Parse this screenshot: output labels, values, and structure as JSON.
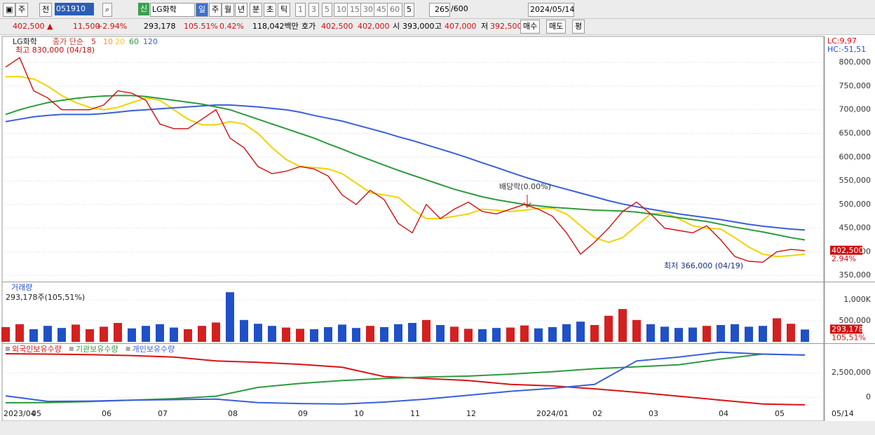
{
  "toolbar": {
    "market": "주",
    "prev": "전",
    "code": "051910",
    "badge": "신",
    "name": "LG화학",
    "periods": [
      "일",
      "주",
      "월",
      "년",
      "분",
      "초",
      "틱"
    ],
    "units": [
      "1",
      "3",
      "5",
      "10",
      "15",
      "30",
      "45",
      "60"
    ],
    "unit_select": "5",
    "count": "265",
    "count_max": "/600",
    "date": "2024/05/14"
  },
  "quote_bar": {
    "price": "402,500 ▲",
    "change": "11,500",
    "change_pct": "+2.94%",
    "volume": "293,178",
    "volume_ratio": "105.51%",
    "turnover": "0.42%",
    "amount": "118,042백만",
    "ask_label": "호가",
    "ask": "402,500",
    "bid": "402,000",
    "open_label": "시",
    "open": "393,000",
    "high_label": "고",
    "high": "407,000",
    "low_label": "저",
    "low": "392,500",
    "buy": "매수",
    "sell": "매도",
    "avg": "평"
  },
  "chart_data": [
    {
      "type": "line",
      "title": "LG화학",
      "legend_label": "종가 단순",
      "unplotted_periods": [
        {
          "name": "5",
          "color": "#d62728"
        },
        {
          "name": "10",
          "color": "#f39c12"
        }
      ],
      "categories": [
        "2023/04",
        null,
        "05",
        null,
        null,
        null,
        null,
        "06",
        null,
        null,
        null,
        "07",
        null,
        null,
        null,
        null,
        "08",
        null,
        null,
        null,
        null,
        "09",
        null,
        null,
        null,
        "10",
        null,
        null,
        null,
        "11",
        null,
        null,
        null,
        "12",
        null,
        null,
        null,
        null,
        "2024/01",
        null,
        null,
        null,
        "02",
        null,
        null,
        null,
        "03",
        null,
        null,
        null,
        null,
        "04",
        null,
        null,
        null,
        "05",
        null,
        null
      ],
      "series": [
        {
          "name": "20",
          "color": "#f2d300",
          "values": [
            770000,
            770000,
            765000,
            750000,
            730000,
            715000,
            705000,
            700000,
            705000,
            715000,
            725000,
            720000,
            700000,
            680000,
            668000,
            668000,
            675000,
            670000,
            650000,
            620000,
            595000,
            580000,
            578000,
            575000,
            565000,
            545000,
            525000,
            520000,
            515000,
            490000,
            470000,
            470000,
            475000,
            480000,
            490000,
            488000,
            485000,
            488000,
            492000,
            492000,
            480000,
            455000,
            430000,
            420000,
            430000,
            455000,
            480000,
            482000,
            470000,
            455000,
            450000,
            448000,
            430000,
            410000,
            395000,
            390000,
            392000,
            395000
          ]
        },
        {
          "name": "60",
          "color": "#2e9a3e",
          "values": [
            690000,
            700000,
            708000,
            715000,
            720000,
            724000,
            727000,
            729000,
            730000,
            730000,
            728000,
            724000,
            720000,
            716000,
            712000,
            706000,
            700000,
            690000,
            680000,
            670000,
            660000,
            650000,
            640000,
            628000,
            617000,
            605000,
            594000,
            583000,
            572000,
            562000,
            552000,
            542000,
            532000,
            524000,
            516000,
            510000,
            505000,
            500000,
            497000,
            494000,
            492000,
            490000,
            488000,
            487000,
            486000,
            484000,
            480000,
            476000,
            472000,
            468000,
            464000,
            458000,
            452000,
            447000,
            442000,
            436000,
            430000,
            425000
          ]
        },
        {
          "name": "120",
          "color": "#3a5fd9",
          "values": [
            675000,
            680000,
            685000,
            688000,
            690000,
            690000,
            690000,
            692000,
            695000,
            698000,
            700000,
            702000,
            704000,
            706000,
            708000,
            710000,
            710000,
            708000,
            706000,
            703000,
            700000,
            695000,
            688000,
            682000,
            676000,
            668000,
            660000,
            652000,
            643000,
            635000,
            626000,
            617000,
            608000,
            598000,
            588000,
            578000,
            568000,
            558000,
            549000,
            540000,
            532000,
            524000,
            516000,
            508000,
            501000,
            495000,
            490000,
            485000,
            480000,
            476000,
            472000,
            468000,
            463000,
            458000,
            454000,
            451000,
            448000,
            446000
          ]
        },
        {
          "name": "LG화학",
          "color": "#d01010",
          "values": [
            790000,
            810000,
            740000,
            725000,
            700000,
            700000,
            700000,
            710000,
            740000,
            735000,
            720000,
            670000,
            660000,
            660000,
            680000,
            700000,
            640000,
            620000,
            580000,
            565000,
            570000,
            580000,
            575000,
            560000,
            520000,
            500000,
            530000,
            510000,
            460000,
            440000,
            500000,
            470000,
            490000,
            505000,
            485000,
            480000,
            490000,
            500000,
            490000,
            475000,
            440000,
            395000,
            420000,
            450000,
            485000,
            505000,
            480000,
            450000,
            445000,
            440000,
            455000,
            425000,
            390000,
            380000,
            378000,
            400000,
            405000,
            402500
          ]
        }
      ],
      "ylim": [
        340000,
        846000
      ],
      "yticks": [
        {
          "value": 350000,
          "label": "350,000"
        },
        {
          "value": 400000,
          "label": "400,000"
        },
        {
          "value": 450000,
          "label": "450,000"
        },
        {
          "value": 500000,
          "label": "500,000"
        },
        {
          "value": 550000,
          "label": "550,000"
        },
        {
          "value": 600000,
          "label": "600,000"
        },
        {
          "value": 650000,
          "label": "650,000"
        },
        {
          "value": 700000,
          "label": "700,000"
        },
        {
          "value": 750000,
          "label": "750,000"
        },
        {
          "value": 800000,
          "label": "800,000"
        }
      ],
      "grid": true,
      "last_label": "402,500",
      "last_change": "2.94%",
      "lc": "LC:9,97",
      "hc": "HC:-51,51",
      "annotations": [
        "최고 830,000 (04/18)",
        "배당락(0.00%)",
        "최저 366,000 (04/19)"
      ],
      "end_date": "05/14"
    },
    {
      "type": "bar",
      "title": "거래량",
      "subtitle": "293,178주(105,51%)",
      "values": [
        350000,
        420000,
        300000,
        380000,
        330000,
        410000,
        300000,
        360000,
        450000,
        320000,
        380000,
        420000,
        340000,
        300000,
        380000,
        460000,
        1180000,
        520000,
        430000,
        380000,
        340000,
        310000,
        300000,
        350000,
        410000,
        330000,
        380000,
        350000,
        420000,
        450000,
        520000,
        400000,
        360000,
        310000,
        300000,
        330000,
        340000,
        390000,
        320000,
        350000,
        420000,
        480000,
        400000,
        620000,
        780000,
        520000,
        420000,
        360000,
        330000,
        340000,
        380000,
        400000,
        420000,
        360000,
        380000,
        560000,
        430000,
        293178
      ],
      "up_color": "#d42020",
      "down_color": "#2050c8",
      "ylim": [
        0,
        1383000
      ],
      "yticks": [
        {
          "value": 500000,
          "label": "500,000"
        },
        {
          "value": 1000000,
          "label": "1,000K"
        }
      ],
      "grid": true,
      "last_label": "293,178",
      "last_ratio": "105,51%"
    },
    {
      "type": "line",
      "series": [
        {
          "name": "외국인보유수량",
          "color": "#d81414",
          "values": [
            4430000,
            4400000,
            4350000,
            4250000,
            4100000,
            3700000,
            3550000,
            3350000,
            3050000,
            2100000,
            1900000,
            1700000,
            1300000,
            1150000,
            850000,
            500000,
            100000,
            -300000,
            -700000,
            -780000
          ]
        },
        {
          "name": "기관보유수량",
          "color": "#2e9a3e",
          "values": [
            -570000,
            -550000,
            -450000,
            -300000,
            -150000,
            100000,
            1000000,
            1400000,
            1700000,
            1900000,
            2050000,
            2150000,
            2350000,
            2600000,
            2900000,
            3100000,
            3300000,
            3900000,
            4400000,
            4300000
          ]
        },
        {
          "name": "개인보유수량",
          "color": "#3a5fd9",
          "values": [
            140000,
            -430000,
            -400000,
            -300000,
            -250000,
            -200000,
            -550000,
            -650000,
            -700000,
            -500000,
            -200000,
            200000,
            600000,
            900000,
            1300000,
            3700000,
            4100000,
            4600000,
            4400000,
            4300000
          ]
        }
      ],
      "ylim": [
        -1070000,
        5290000
      ],
      "yticks": [
        0,
        {
          "value": 2500000,
          "label": "2,500,000"
        }
      ],
      "grid": true
    }
  ]
}
